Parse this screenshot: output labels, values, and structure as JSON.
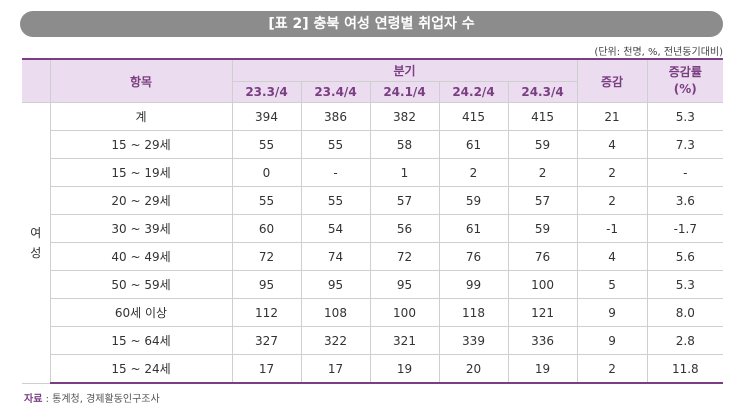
{
  "title": "[표 2] 충북 여성 연령별 취업자 수",
  "unit": "(단위: 천명, %, 전년동기대비)",
  "table": {
    "header_item": "항목",
    "header_quarter": "분기",
    "header_change": "증감",
    "header_rate": "증감률\n(%)",
    "quarters": [
      "23.3/4",
      "23.4/4",
      "24.1/4",
      "24.2/4",
      "24.3/4"
    ],
    "group_label": "여\n성",
    "rows": [
      {
        "label": "계",
        "values": [
          "394",
          "386",
          "382",
          "415",
          "415"
        ],
        "change": "21",
        "rate": "5.3"
      },
      {
        "label": "15 ~ 29세",
        "values": [
          "55",
          "55",
          "58",
          "61",
          "59"
        ],
        "change": "4",
        "rate": "7.3"
      },
      {
        "label": "15 ~ 19세",
        "values": [
          "0",
          "-",
          "1",
          "2",
          "2"
        ],
        "change": "2",
        "rate": "-"
      },
      {
        "label": "20 ~ 29세",
        "values": [
          "55",
          "55",
          "57",
          "59",
          "57"
        ],
        "change": "2",
        "rate": "3.6"
      },
      {
        "label": "30 ~ 39세",
        "values": [
          "60",
          "54",
          "56",
          "61",
          "59"
        ],
        "change": "-1",
        "rate": "-1.7"
      },
      {
        "label": "40 ~ 49세",
        "values": [
          "72",
          "74",
          "72",
          "76",
          "76"
        ],
        "change": "4",
        "rate": "5.6"
      },
      {
        "label": "50 ~ 59세",
        "values": [
          "95",
          "95",
          "95",
          "99",
          "100"
        ],
        "change": "5",
        "rate": "5.3"
      },
      {
        "label": "60세 이상",
        "values": [
          "112",
          "108",
          "100",
          "118",
          "121"
        ],
        "change": "9",
        "rate": "8.0"
      },
      {
        "label": "15 ~ 64세",
        "values": [
          "327",
          "322",
          "321",
          "339",
          "336"
        ],
        "change": "9",
        "rate": "2.8"
      },
      {
        "label": "15 ~ 24세",
        "values": [
          "17",
          "17",
          "19",
          "20",
          "19"
        ],
        "change": "2",
        "rate": "11.8"
      }
    ]
  },
  "source": {
    "label": "자료",
    "text": ": 통계청, 경제활동인구조사"
  }
}
